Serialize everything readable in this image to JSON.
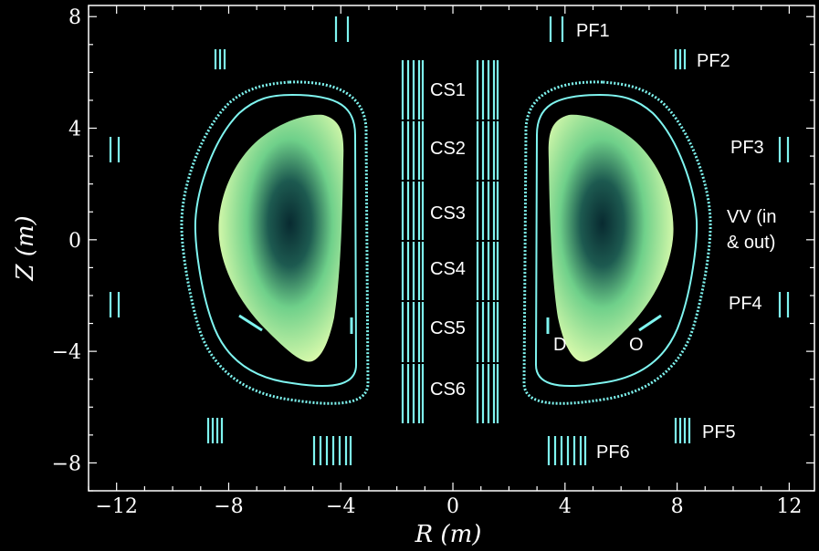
{
  "chart_data": {
    "type": "diagram",
    "xlabel": "R (m)",
    "ylabel": "Z (m)",
    "xlim": [
      -13.0,
      12.9
    ],
    "ylim": [
      -9.0,
      8.4
    ],
    "xticks": [
      -12,
      -8,
      -4,
      0,
      4,
      8,
      12
    ],
    "yticks": [
      -8,
      -4,
      0,
      4,
      8
    ],
    "xtick_labels": [
      "−12",
      "−8",
      "−4",
      "0",
      "4",
      "8",
      "12"
    ],
    "ytick_labels": [
      "−8",
      "−4",
      "0",
      "4",
      "8"
    ],
    "cs_labels": [
      "CS1",
      "CS2",
      "CS3",
      "CS4",
      "CS5",
      "CS6"
    ],
    "pf_labels": [
      "PF1",
      "PF2",
      "PF3",
      "PF4",
      "PF5",
      "PF6"
    ],
    "vv_label_line1": "VV (in",
    "vv_label_line2": "& out)",
    "divertor_labels": [
      "D",
      "O"
    ],
    "coil_color": "#7ff5f0",
    "plasma_edge_color": "#e6ffb0",
    "plasma_mid_color": "#6fd08a",
    "plasma_core_color": "#082a30"
  }
}
